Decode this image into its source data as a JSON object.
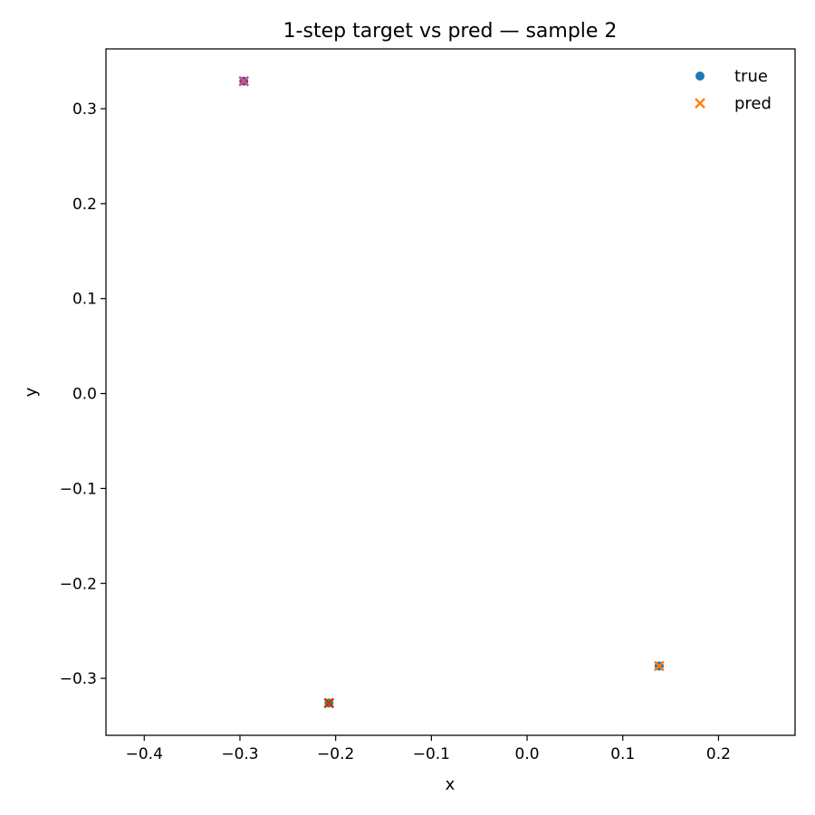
{
  "chart_data": {
    "type": "scatter",
    "title": "1-step target vs pred — sample 2",
    "xlabel": "x",
    "ylabel": "y",
    "xlim": [
      -0.44,
      0.28
    ],
    "ylim": [
      -0.36,
      0.363
    ],
    "x_ticks": [
      -0.4,
      -0.3,
      -0.2,
      -0.1,
      0.0,
      0.1,
      0.2
    ],
    "x_tick_labels": [
      "−0.4",
      "−0.3",
      "−0.2",
      "−0.1",
      "0.0",
      "0.1",
      "0.2"
    ],
    "y_ticks": [
      -0.3,
      -0.2,
      -0.1,
      0.0,
      0.1,
      0.2,
      0.3
    ],
    "y_tick_labels": [
      "−0.3",
      "−0.2",
      "−0.1",
      "0.0",
      "0.1",
      "0.2",
      "0.3"
    ],
    "grid": false,
    "legend": {
      "placement": "top-right",
      "entries": [
        {
          "label": "true",
          "marker": "circle",
          "color": "#1f77b4"
        },
        {
          "label": "pred",
          "marker": "x",
          "color": "#ff7f0e"
        }
      ]
    },
    "series": [
      {
        "name": "true",
        "marker": "circle",
        "points": [
          {
            "x": -0.296,
            "y": 0.329,
            "color": "#d62728"
          },
          {
            "x": -0.207,
            "y": -0.326,
            "color": "#2ca02c"
          },
          {
            "x": 0.138,
            "y": -0.287,
            "color": "#1f77b4"
          }
        ]
      },
      {
        "name": "pred",
        "marker": "x",
        "points": [
          {
            "x": -0.296,
            "y": 0.329,
            "color": "#9467bd"
          },
          {
            "x": -0.207,
            "y": -0.326,
            "color": "#d62728"
          },
          {
            "x": 0.138,
            "y": -0.287,
            "color": "#ff7f0e"
          }
        ]
      }
    ]
  }
}
